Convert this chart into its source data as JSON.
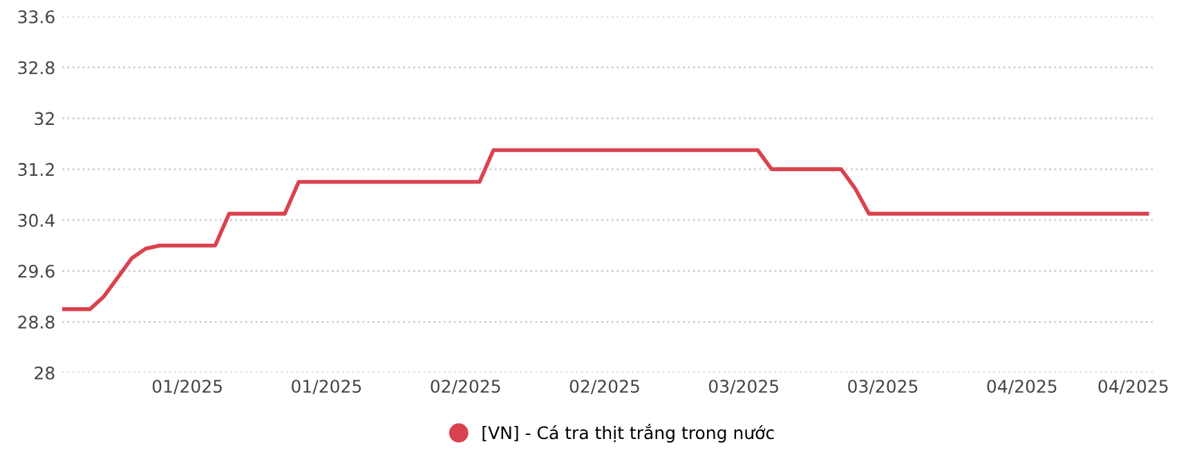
{
  "chart_data": {
    "type": "line",
    "legend": "bottom",
    "grid": "y",
    "categories": [
      null,
      null,
      null,
      null,
      null,
      null,
      null,
      null,
      null,
      "01/2025",
      null,
      null,
      null,
      null,
      null,
      null,
      null,
      null,
      null,
      "01/2025",
      null,
      null,
      null,
      null,
      null,
      null,
      null,
      null,
      null,
      "02/2025",
      null,
      null,
      null,
      null,
      null,
      null,
      null,
      null,
      null,
      "02/2025",
      null,
      null,
      null,
      null,
      null,
      null,
      null,
      null,
      null,
      "03/2025",
      null,
      null,
      null,
      null,
      null,
      null,
      null,
      null,
      null,
      "03/2025",
      null,
      null,
      null,
      null,
      null,
      null,
      null,
      null,
      null,
      "04/2025",
      null,
      null,
      null,
      null,
      null,
      null,
      null,
      "04/2025",
      null
    ],
    "series": [
      {
        "name": "[VN] - Cá tra thịt trắng trong nước",
        "color": "#d9434f",
        "values": [
          29.0,
          29.0,
          29.0,
          29.2,
          29.5,
          29.8,
          29.95,
          30.0,
          30.0,
          30.0,
          30.0,
          30.0,
          30.5,
          30.5,
          30.5,
          30.5,
          30.5,
          31.0,
          31.0,
          31.0,
          31.0,
          31.0,
          31.0,
          31.0,
          31.0,
          31.0,
          31.0,
          31.0,
          31.0,
          31.0,
          31.0,
          31.5,
          31.5,
          31.5,
          31.5,
          31.5,
          31.5,
          31.5,
          31.5,
          31.5,
          31.5,
          31.5,
          31.5,
          31.5,
          31.5,
          31.5,
          31.5,
          31.5,
          31.5,
          31.5,
          31.5,
          31.2,
          31.2,
          31.2,
          31.2,
          31.2,
          31.2,
          30.9,
          30.5,
          30.5,
          30.5,
          30.5,
          30.5,
          30.5,
          30.5,
          30.5,
          30.5,
          30.5,
          30.5,
          30.5,
          30.5,
          30.5,
          30.5,
          30.5,
          30.5,
          30.5,
          30.5,
          30.5,
          30.5
        ]
      }
    ],
    "ylim": [
      28,
      33.6
    ],
    "yticks": [
      28,
      28.8,
      29.6,
      30.4,
      31.2,
      32,
      32.8,
      33.6
    ]
  }
}
